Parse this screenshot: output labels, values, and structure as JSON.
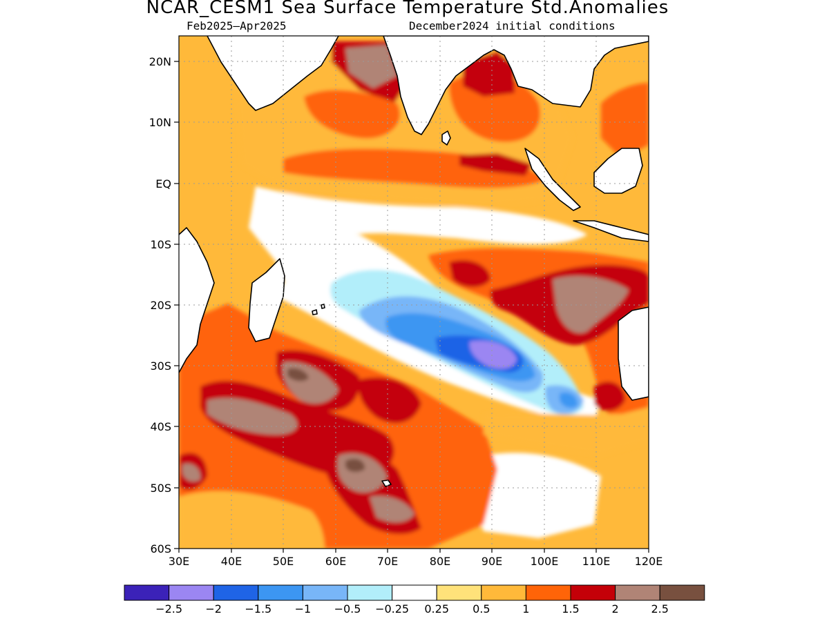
{
  "title": "NCAR_CESM1 Sea Surface Temperature Std.Anomalies",
  "subtitle_left": "Feb2025–Apr2025",
  "subtitle_right": "December2024 initial conditions",
  "lat_labels": [
    "20N",
    "10N",
    "EQ",
    "10S",
    "20S",
    "30S",
    "40S",
    "50S",
    "60S"
  ],
  "lon_labels": [
    "30E",
    "40E",
    "50E",
    "60E",
    "70E",
    "80E",
    "90E",
    "100E",
    "110E",
    "120E"
  ],
  "colorbar": {
    "labels": [
      "−2.5",
      "−2",
      "−1.5",
      "−1",
      "−0.5",
      "−0.25",
      "0.25",
      "0.5",
      "1",
      "1.5",
      "2",
      "2.5"
    ],
    "colors": [
      "#3b22b8",
      "#9b86f2",
      "#1f64e6",
      "#3c96f2",
      "#78b6f8",
      "#b2eefa",
      "#ffffff",
      "#ffe27a",
      "#ffb93a",
      "#ff6408",
      "#c40008",
      "#b08476",
      "#78503f"
    ]
  }
}
